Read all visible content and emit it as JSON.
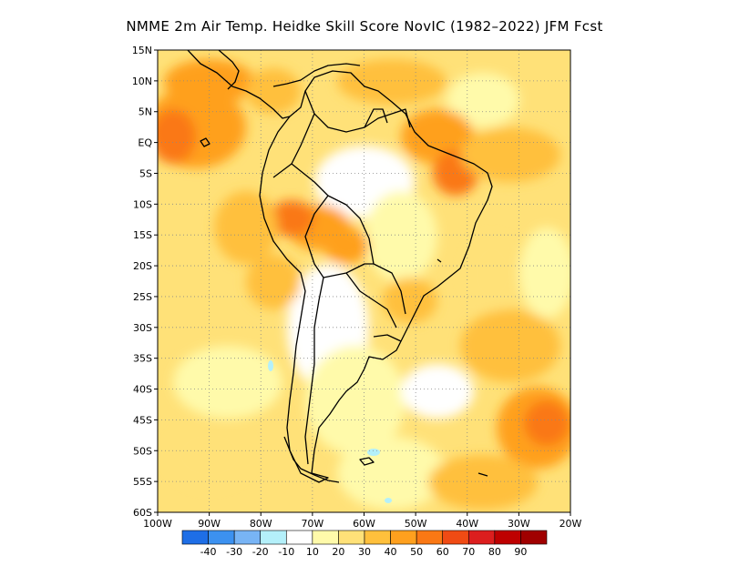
{
  "title": "NMME  2m Air Temp. Heidke Skill Score NovIC (1982–2022) JFM Fcst",
  "lat_labels": [
    "15N",
    "10N",
    "5N",
    "EQ",
    "5S",
    "10S",
    "15S",
    "20S",
    "25S",
    "30S",
    "35S",
    "40S",
    "45S",
    "50S",
    "55S",
    "60S"
  ],
  "lon_labels": [
    "100W",
    "90W",
    "80W",
    "70W",
    "60W",
    "50W",
    "40W",
    "30W",
    "20W"
  ],
  "colorbar": {
    "colors": [
      "#1e6ee6",
      "#3c91f0",
      "#78b4f5",
      "#b4f0fa",
      "#ffffff",
      "#fffaaa",
      "#ffe178",
      "#ffc03c",
      "#ffa01e",
      "#fa7814",
      "#f04b14",
      "#dc1e1e",
      "#be0000",
      "#a00000"
    ],
    "labels": [
      "-40",
      "-30",
      "-20",
      "-10",
      "10",
      "20",
      "30",
      "40",
      "50",
      "60",
      "70",
      "80",
      "90"
    ]
  }
}
